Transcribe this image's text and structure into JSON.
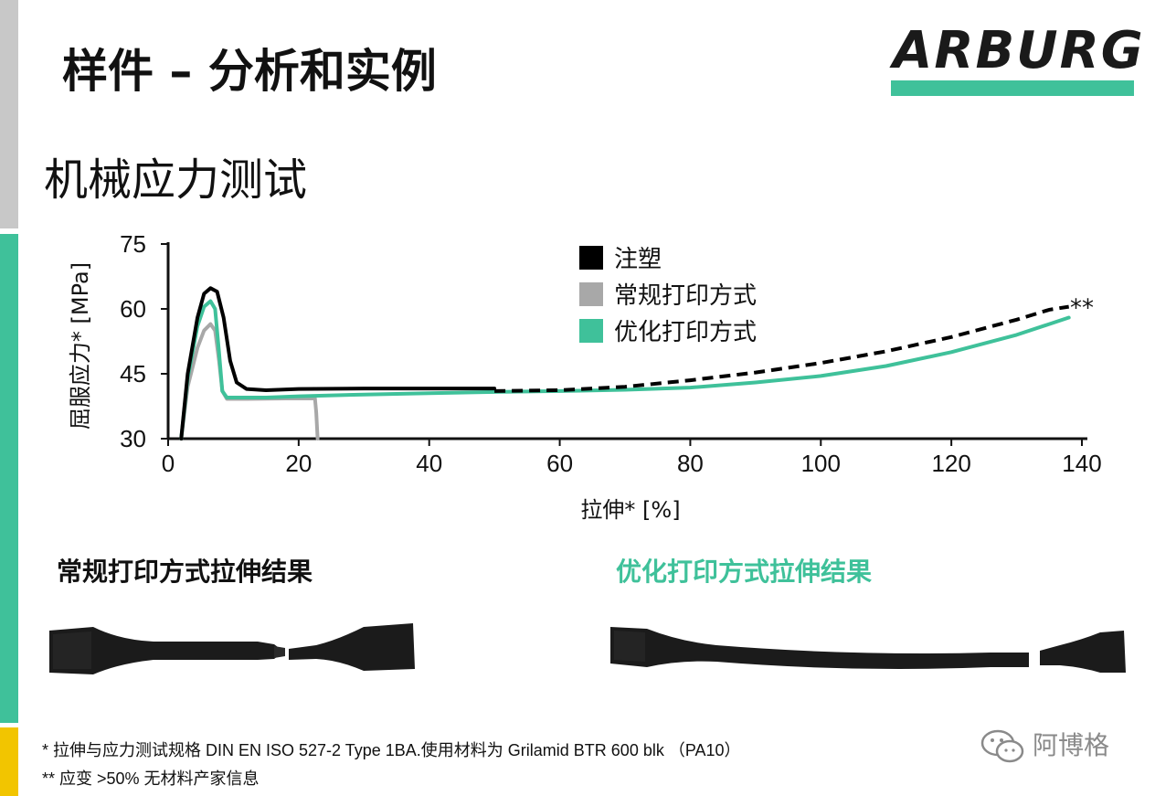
{
  "slide": {
    "title": "样件 – 分析和实例",
    "section_title": "机械应力测试",
    "logo_text": "ARBURG",
    "accent_color": "#3fc19a"
  },
  "chart_data": {
    "type": "line",
    "xlabel": "拉伸* [%]",
    "ylabel": "屈服应力* [MPa]",
    "xlim": [
      0,
      140
    ],
    "ylim": [
      30,
      75
    ],
    "xticks": [
      0,
      20,
      40,
      60,
      80,
      100,
      120,
      140
    ],
    "yticks": [
      30,
      45,
      60,
      75
    ],
    "grid": false,
    "legend_position": "top-center",
    "series": [
      {
        "name": "注塑",
        "color": "#000000",
        "points": [
          [
            2,
            30
          ],
          [
            3,
            45
          ],
          [
            4.5,
            58
          ],
          [
            5.5,
            63.5
          ],
          [
            6.5,
            64.8
          ],
          [
            7.5,
            64
          ],
          [
            8.5,
            58
          ],
          [
            9.5,
            48
          ],
          [
            10.5,
            43
          ],
          [
            12,
            41.5
          ],
          [
            15,
            41.2
          ],
          [
            20,
            41.5
          ],
          [
            30,
            41.6
          ],
          [
            40,
            41.6
          ],
          [
            50,
            41.6
          ]
        ],
        "dashed_extension": [
          [
            50,
            41
          ],
          [
            60,
            41.2
          ],
          [
            70,
            42
          ],
          [
            80,
            43.5
          ],
          [
            90,
            45.3
          ],
          [
            100,
            47.5
          ],
          [
            110,
            50.2
          ],
          [
            120,
            53.5
          ],
          [
            130,
            57.5
          ],
          [
            135,
            59.8
          ],
          [
            138,
            60.5
          ]
        ]
      },
      {
        "name": "常规打印方式",
        "color": "#a8a8a8",
        "points": [
          [
            2,
            30
          ],
          [
            3,
            42
          ],
          [
            4.5,
            51
          ],
          [
            5.5,
            55
          ],
          [
            6.5,
            56.5
          ],
          [
            7.2,
            55
          ],
          [
            7.8,
            48
          ],
          [
            8.3,
            41
          ],
          [
            9,
            39.2
          ],
          [
            12,
            39.2
          ],
          [
            18,
            39.3
          ],
          [
            22.5,
            39.3
          ],
          [
            22.7,
            36
          ],
          [
            22.9,
            30
          ]
        ]
      },
      {
        "name": "优化打印方式",
        "color": "#3fc19a",
        "points": [
          [
            2,
            30
          ],
          [
            3,
            44
          ],
          [
            4.5,
            56
          ],
          [
            5.5,
            60.5
          ],
          [
            6.5,
            61.8
          ],
          [
            7.2,
            60
          ],
          [
            7.8,
            50
          ],
          [
            8.3,
            41
          ],
          [
            9,
            39.5
          ],
          [
            15,
            39.5
          ],
          [
            20,
            39.8
          ],
          [
            30,
            40.2
          ],
          [
            40,
            40.5
          ],
          [
            50,
            40.8
          ],
          [
            60,
            41
          ],
          [
            70,
            41.3
          ],
          [
            80,
            41.8
          ],
          [
            90,
            43
          ],
          [
            100,
            44.5
          ],
          [
            110,
            46.8
          ],
          [
            120,
            50
          ],
          [
            130,
            54
          ],
          [
            135,
            56.5
          ],
          [
            138,
            58
          ]
        ]
      }
    ],
    "annotations": [
      {
        "text": "**",
        "x": 140,
        "y": 60.5
      }
    ]
  },
  "results": {
    "left_title": "常规打印方式拉伸结果",
    "right_title": "优化打印方式拉伸结果"
  },
  "footnotes": {
    "line1": "* 拉伸与应力测试规格 DIN EN ISO 527-2 Type 1BA.使用材料为 Grilamid BTR 600 blk （PA10）",
    "line2": "** 应变 >50% 无材料产家信息"
  },
  "brand": {
    "name": "阿博格"
  }
}
